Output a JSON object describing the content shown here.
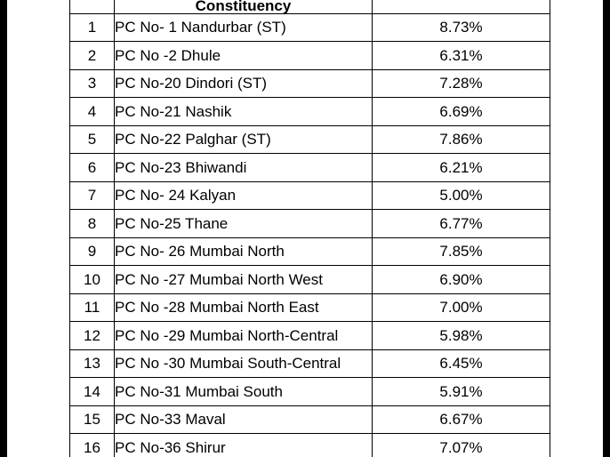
{
  "table": {
    "header": {
      "constituency": "Constituency"
    },
    "rows": [
      {
        "sn": "1",
        "name": "PC No- 1 Nandurbar (ST)",
        "pct": "8.73%"
      },
      {
        "sn": "2",
        "name": "PC No -2  Dhule",
        "pct": "6.31%"
      },
      {
        "sn": "3",
        "name": "PC No-20 Dindori (ST)",
        "pct": "7.28%"
      },
      {
        "sn": "4",
        "name": "PC No-21  Nashik",
        "pct": "6.69%"
      },
      {
        "sn": "5",
        "name": "PC No-22 Palghar (ST)",
        "pct": "7.86%"
      },
      {
        "sn": "6",
        "name": "PC No-23 Bhiwandi",
        "pct": "6.21%"
      },
      {
        "sn": "7",
        "name": "PC No- 24 Kalyan",
        "pct": "5.00%"
      },
      {
        "sn": "8",
        "name": "PC No-25 Thane",
        "pct": "6.77%"
      },
      {
        "sn": "9",
        "name": "PC No- 26 Mumbai North",
        "pct": "7.85%"
      },
      {
        "sn": "10",
        "name": "PC No -27 Mumbai North West",
        "pct": "6.90%"
      },
      {
        "sn": "11",
        "name": "PC No -28 Mumbai North East",
        "pct": "7.00%"
      },
      {
        "sn": "12",
        "name": "PC No -29 Mumbai North-Central",
        "pct": "5.98%"
      },
      {
        "sn": "13",
        "name": "PC No -30 Mumbai South-Central",
        "pct": "6.45%"
      },
      {
        "sn": "14",
        "name": "PC No-31 Mumbai South",
        "pct": "5.91%"
      },
      {
        "sn": "15",
        "name": "PC No-33 Maval",
        "pct": "6.67%"
      },
      {
        "sn": "16",
        "name": "PC No-36 Shirur",
        "pct": "7.07%"
      }
    ]
  }
}
